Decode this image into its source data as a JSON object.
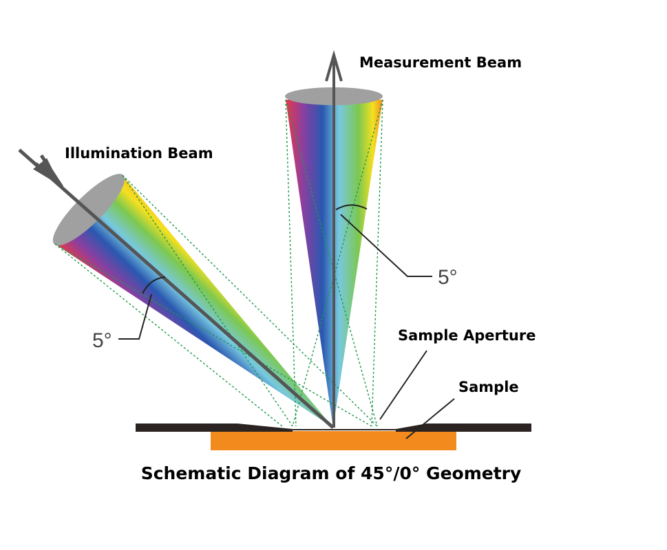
{
  "measurement_beam": {
    "label": "Measurement Beam",
    "angle": "5°"
  },
  "illumination_beam": {
    "label": "Illumination Beam",
    "angle": "5°"
  },
  "callouts": {
    "aperture": "Sample Aperture",
    "sample": "Sample"
  },
  "caption": "Schematic Diagram of 45°/0° Geometry"
}
